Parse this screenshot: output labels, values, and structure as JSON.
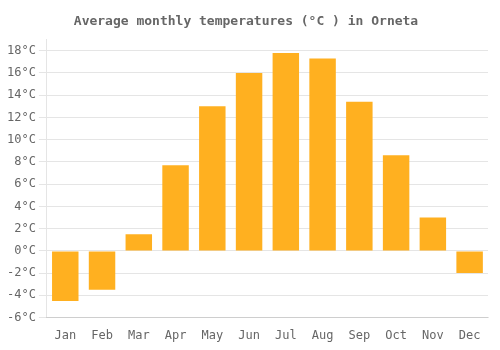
{
  "chart_data": {
    "type": "bar",
    "title": "Average monthly temperatures (°C ) in Orneta",
    "categories": [
      "Jan",
      "Feb",
      "Mar",
      "Apr",
      "May",
      "Jun",
      "Jul",
      "Aug",
      "Sep",
      "Oct",
      "Nov",
      "Dec"
    ],
    "values": [
      -4.5,
      -3.5,
      1.5,
      7.7,
      13.0,
      16.0,
      17.8,
      17.3,
      13.4,
      8.6,
      3.0,
      -2.0
    ],
    "color": "#FFB020",
    "ylim": [
      -6,
      19
    ],
    "yticks": [
      {
        "value": -6,
        "label": "-6°C"
      },
      {
        "value": -4,
        "label": "-4°C"
      },
      {
        "value": -2,
        "label": "-2°C"
      },
      {
        "value": 0,
        "label": "0°C"
      },
      {
        "value": 2,
        "label": "2°C"
      },
      {
        "value": 4,
        "label": "4°C"
      },
      {
        "value": 6,
        "label": "6°C"
      },
      {
        "value": 8,
        "label": "8°C"
      },
      {
        "value": 10,
        "label": "10°C"
      },
      {
        "value": 12,
        "label": "12°C"
      },
      {
        "value": 14,
        "label": "14°C"
      },
      {
        "value": 16,
        "label": "16°C"
      },
      {
        "value": 18,
        "label": "18°C"
      }
    ],
    "grid": true
  }
}
